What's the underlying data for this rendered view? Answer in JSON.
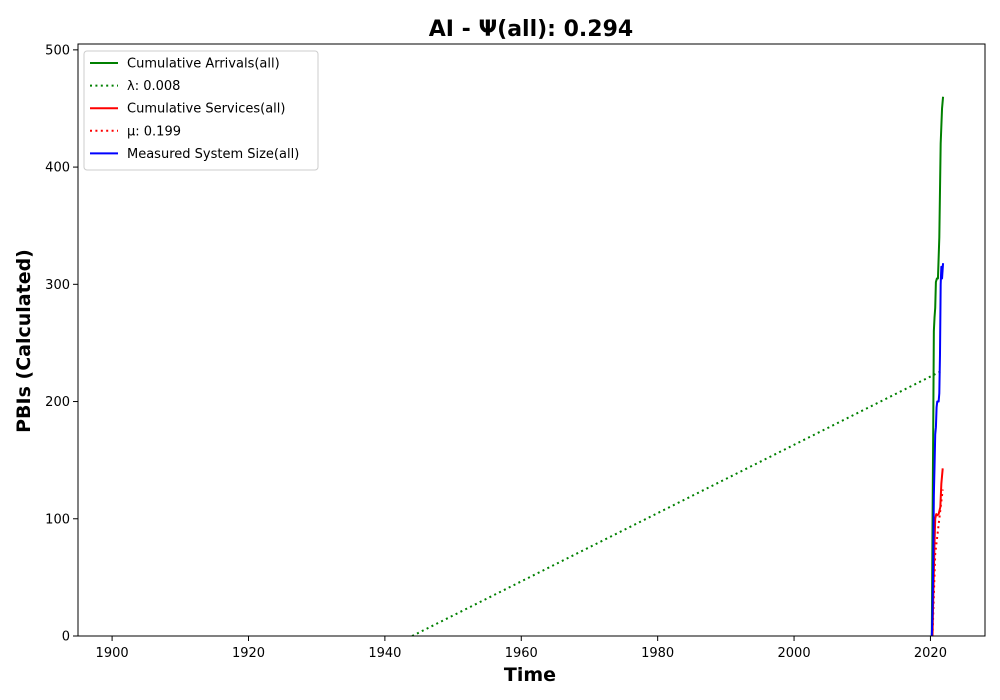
{
  "chart_data": {
    "type": "line",
    "title": "AI -  Ψ(all): 0.294",
    "xlabel": "Time",
    "ylabel": "PBIs (Calculated)",
    "xlim": [
      1895,
      2028
    ],
    "ylim": [
      0,
      505
    ],
    "xticks": [
      1900,
      1920,
      1940,
      1960,
      1980,
      2000,
      2020
    ],
    "yticks": [
      0,
      100,
      200,
      300,
      400,
      500
    ],
    "grid": false,
    "legend_position": "top-left",
    "series": [
      {
        "name": "Cumulative Arrivals(all)",
        "color": "#008000",
        "style": "solid",
        "points": [
          [
            2020.2,
            0
          ],
          [
            2020.3,
            90
          ],
          [
            2020.4,
            170
          ],
          [
            2020.5,
            260
          ],
          [
            2020.6,
            272
          ],
          [
            2020.7,
            280
          ],
          [
            2020.8,
            302
          ],
          [
            2020.95,
            305
          ],
          [
            2021.1,
            305
          ],
          [
            2021.3,
            340
          ],
          [
            2021.5,
            420
          ],
          [
            2021.7,
            450
          ],
          [
            2021.85,
            460
          ]
        ]
      },
      {
        "name": "λ: 0.008",
        "color": "#008000",
        "style": "dotted",
        "points": [
          [
            1944,
            0
          ],
          [
            2021.6,
            226
          ]
        ]
      },
      {
        "name": "Cumulative Services(all)",
        "color": "#ff0000",
        "style": "solid",
        "points": [
          [
            2020.3,
            0
          ],
          [
            2020.4,
            30
          ],
          [
            2020.5,
            55
          ],
          [
            2020.6,
            80
          ],
          [
            2020.7,
            100
          ],
          [
            2020.85,
            104
          ],
          [
            2021.0,
            103
          ],
          [
            2021.2,
            104
          ],
          [
            2021.45,
            110
          ],
          [
            2021.6,
            130
          ],
          [
            2021.8,
            143
          ]
        ]
      },
      {
        "name": "μ: 0.199",
        "color": "#ff0000",
        "style": "dotted",
        "points": [
          [
            2020.3,
            0
          ],
          [
            2020.7,
            70
          ],
          [
            2021.2,
            95
          ],
          [
            2021.8,
            125
          ]
        ]
      },
      {
        "name": "Measured System Size(all)",
        "color": "#0000ff",
        "style": "solid",
        "points": [
          [
            2020.2,
            0
          ],
          [
            2020.3,
            20
          ],
          [
            2020.4,
            60
          ],
          [
            2020.5,
            120
          ],
          [
            2020.6,
            145
          ],
          [
            2020.7,
            172
          ],
          [
            2020.8,
            178
          ],
          [
            2020.9,
            195
          ],
          [
            2021.0,
            200
          ],
          [
            2021.2,
            200
          ],
          [
            2021.3,
            207
          ],
          [
            2021.4,
            240
          ],
          [
            2021.5,
            300
          ],
          [
            2021.6,
            315
          ],
          [
            2021.7,
            305
          ],
          [
            2021.85,
            318
          ]
        ]
      }
    ]
  }
}
